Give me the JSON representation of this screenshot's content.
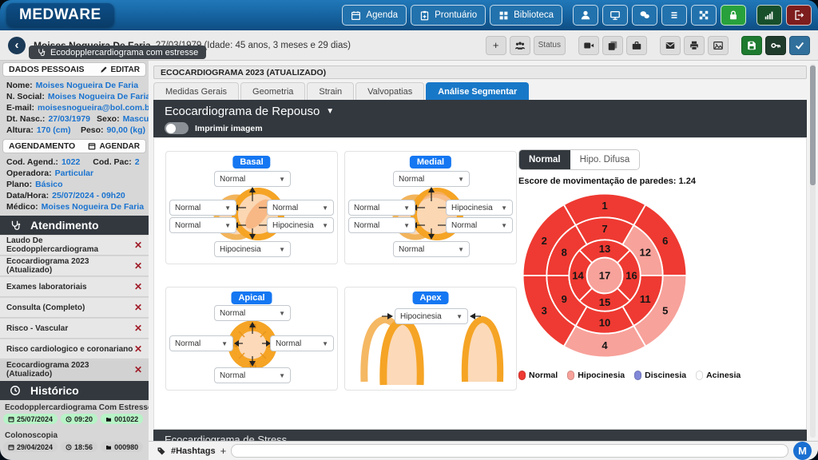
{
  "app": {
    "logo": "MEDWARE"
  },
  "top_nav": {
    "buttons": [
      {
        "label": "Agenda",
        "icon": "calendar-icon"
      },
      {
        "label": "Prontuário",
        "icon": "clipboard-icon"
      },
      {
        "label": "Biblioteca",
        "icon": "library-grid-icon"
      }
    ],
    "icon_buttons": [
      "user-icon",
      "monitor-icon",
      "chat-icon",
      "menu-icon",
      "apps-icon",
      "lock-icon",
      "signal-icon",
      "logout-icon"
    ]
  },
  "patient_bar": {
    "name": "Moises Nogueira De Faria",
    "birth_info": "27/03/1979 (Idade: 45 anos, 3 meses e 29 dias)",
    "exam_pill": "Ecodopplercardiograma com estresse",
    "plus_label": "+",
    "status_label": "Status",
    "icon_buttons": [
      "group-icon",
      "video-icon",
      "copy-icon",
      "briefcase-icon",
      "envelope-icon",
      "printer-icon",
      "image-icon",
      "save-icon",
      "key-icon",
      "check-icon"
    ]
  },
  "sidebar": {
    "personal": {
      "title": "DADOS PESSOAIS",
      "edit_label": "EDITAR",
      "nome_l": "Nome:",
      "nome_v": "Moises Nogueira De Faria",
      "social_l": "N. Social:",
      "social_v": "Moises Nogueira De Faria",
      "email_l": "E-mail:",
      "email_v": "moisesnogueira@bol.com.br",
      "nasc_l": "Dt. Nasc.:",
      "nasc_v": "27/03/1979",
      "sexo_l": "Sexo:",
      "sexo_v": "Masculino",
      "altura_l": "Altura:",
      "altura_v": "170 (cm)",
      "peso_l": "Peso:",
      "peso_v": "90,00 (kg)"
    },
    "schedule": {
      "title": "AGENDAMENTO",
      "action_label": "AGENDAR",
      "cod_l": "Cod. Agend.:",
      "cod_v": "1022",
      "pac_l": "Cod. Pac:",
      "pac_v": "2",
      "oper_l": "Operadora:",
      "oper_v": "Particular",
      "plano_l": "Plano:",
      "plano_v": "Básico",
      "data_l": "Data/Hora:",
      "data_v": "25/07/2024  -  09h20",
      "med_l": "Médico:",
      "med_v": "Moises Nogueira De Faria"
    },
    "atendimento": {
      "title": "Atendimento",
      "close_glyph": "✕",
      "items": [
        "Laudo De Ecodopplercardiograma",
        "Ecocardiograma 2023 (Atualizado)",
        "Exames laboratoriais",
        "Consulta (Completo)",
        "Risco - Vascular",
        "Risco cardiologico e coronariano",
        "Ecocardiograma 2023 (Atualizado)"
      ]
    },
    "historico": {
      "title": "Histórico",
      "entries": [
        {
          "title": "Ecodopplercardiograma Com Estresse",
          "date": "25/07/2024",
          "time": "09:20",
          "code": "001022"
        },
        {
          "title": "Colonoscopia",
          "date": "29/04/2024",
          "time": "18:56",
          "code": "000980"
        }
      ]
    }
  },
  "main": {
    "title": "ECOCARDIOGRAMA 2023 (ATUALIZADO)",
    "tabs": [
      {
        "label": "Medidas Gerais"
      },
      {
        "label": "Geometria"
      },
      {
        "label": "Strain"
      },
      {
        "label": "Valvopatias"
      },
      {
        "label": "Análise Segmentar"
      }
    ],
    "section_title": "Ecocardiograma de Repouso",
    "print_toggle_label": "Imprimir imagem",
    "bottom_section_title": "Ecocardiograma de Stress",
    "diagrams": {
      "basal": {
        "title": "Basal",
        "top": "Normal",
        "left1": "Normal",
        "left2": "Normal",
        "right1": "Normal",
        "right2": "Hipocinesia",
        "bottom": "Hipocinesia"
      },
      "medial": {
        "title": "Medial",
        "top": "Normal",
        "left1": "Normal",
        "left2": "Normal",
        "right1": "Hipocinesia",
        "right2": "Normal",
        "bottom": "Normal"
      },
      "apical": {
        "title": "Apical",
        "top": "Normal",
        "left": "Normal",
        "right": "Normal",
        "bottom": "Normal",
        "seg_top": "13",
        "seg_left": "14",
        "seg_bottom": "15",
        "seg_right": "16"
      },
      "apex": {
        "title": "Apex",
        "value": "Hipocinesia"
      }
    },
    "mode_normal": "Normal",
    "mode_difusa": "Hipo. Difusa",
    "score_label": "Escore de movimentação de paredes:",
    "score_value": "1.24"
  },
  "chart_data": {
    "type": "bullseye-17-segment",
    "description": "AHA 17-segment left ventricular wall-motion bull's-eye map",
    "score_label": "Escore de movimentação de paredes:",
    "score_value": 1.24,
    "status_colors": {
      "normal": "#ee3a32",
      "hipocinesia": "#f7a29b",
      "discinesia": "#8188d8",
      "acinesia": "#ffffff"
    },
    "segments": [
      {
        "n": 1,
        "status": "normal"
      },
      {
        "n": 2,
        "status": "normal"
      },
      {
        "n": 3,
        "status": "normal"
      },
      {
        "n": 4,
        "status": "hipocinesia"
      },
      {
        "n": 5,
        "status": "hipocinesia"
      },
      {
        "n": 6,
        "status": "normal"
      },
      {
        "n": 7,
        "status": "normal"
      },
      {
        "n": 8,
        "status": "normal"
      },
      {
        "n": 9,
        "status": "normal"
      },
      {
        "n": 10,
        "status": "normal"
      },
      {
        "n": 11,
        "status": "normal"
      },
      {
        "n": 12,
        "status": "hipocinesia"
      },
      {
        "n": 13,
        "status": "normal"
      },
      {
        "n": 14,
        "status": "normal"
      },
      {
        "n": 15,
        "status": "normal"
      },
      {
        "n": 16,
        "status": "normal"
      },
      {
        "n": 17,
        "status": "hipocinesia"
      }
    ],
    "legend": [
      {
        "label": "Normal",
        "status": "normal"
      },
      {
        "label": "Hipocinesia",
        "status": "hipocinesia"
      },
      {
        "label": "Discinesia",
        "status": "discinesia"
      },
      {
        "label": "Acinesia",
        "status": "acinesia"
      }
    ]
  },
  "footer": {
    "hashtags_label": "#Hashtags",
    "add_label": "+",
    "avatar": "M"
  }
}
